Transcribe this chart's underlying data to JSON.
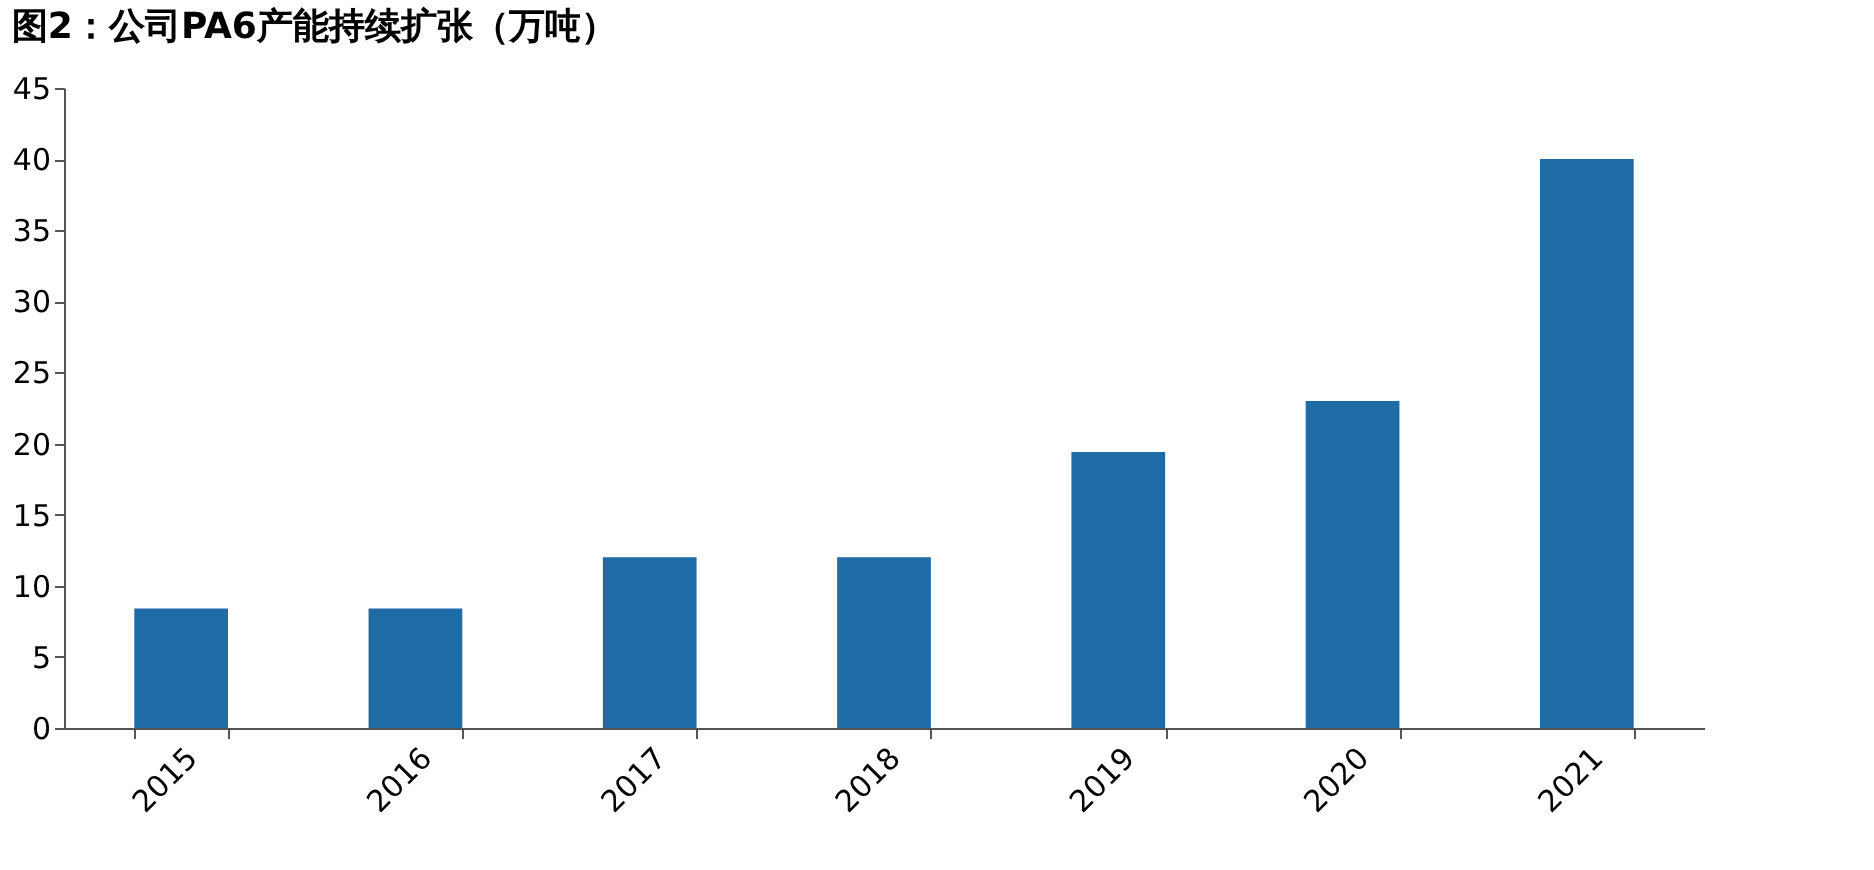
{
  "chart_data": {
    "type": "bar",
    "title": "图2：公司PA6产能持续扩张（万吨）",
    "categories": [
      "2015",
      "2016",
      "2017",
      "2018",
      "2019",
      "2020",
      "2021"
    ],
    "values": [
      8.4,
      8.4,
      12,
      12,
      19.4,
      23,
      40
    ],
    "color": "#1f6ba5",
    "ylim": [
      0,
      45
    ],
    "yticks": [
      0,
      5,
      10,
      15,
      20,
      25,
      30,
      35,
      40,
      45
    ],
    "grid": false
  }
}
